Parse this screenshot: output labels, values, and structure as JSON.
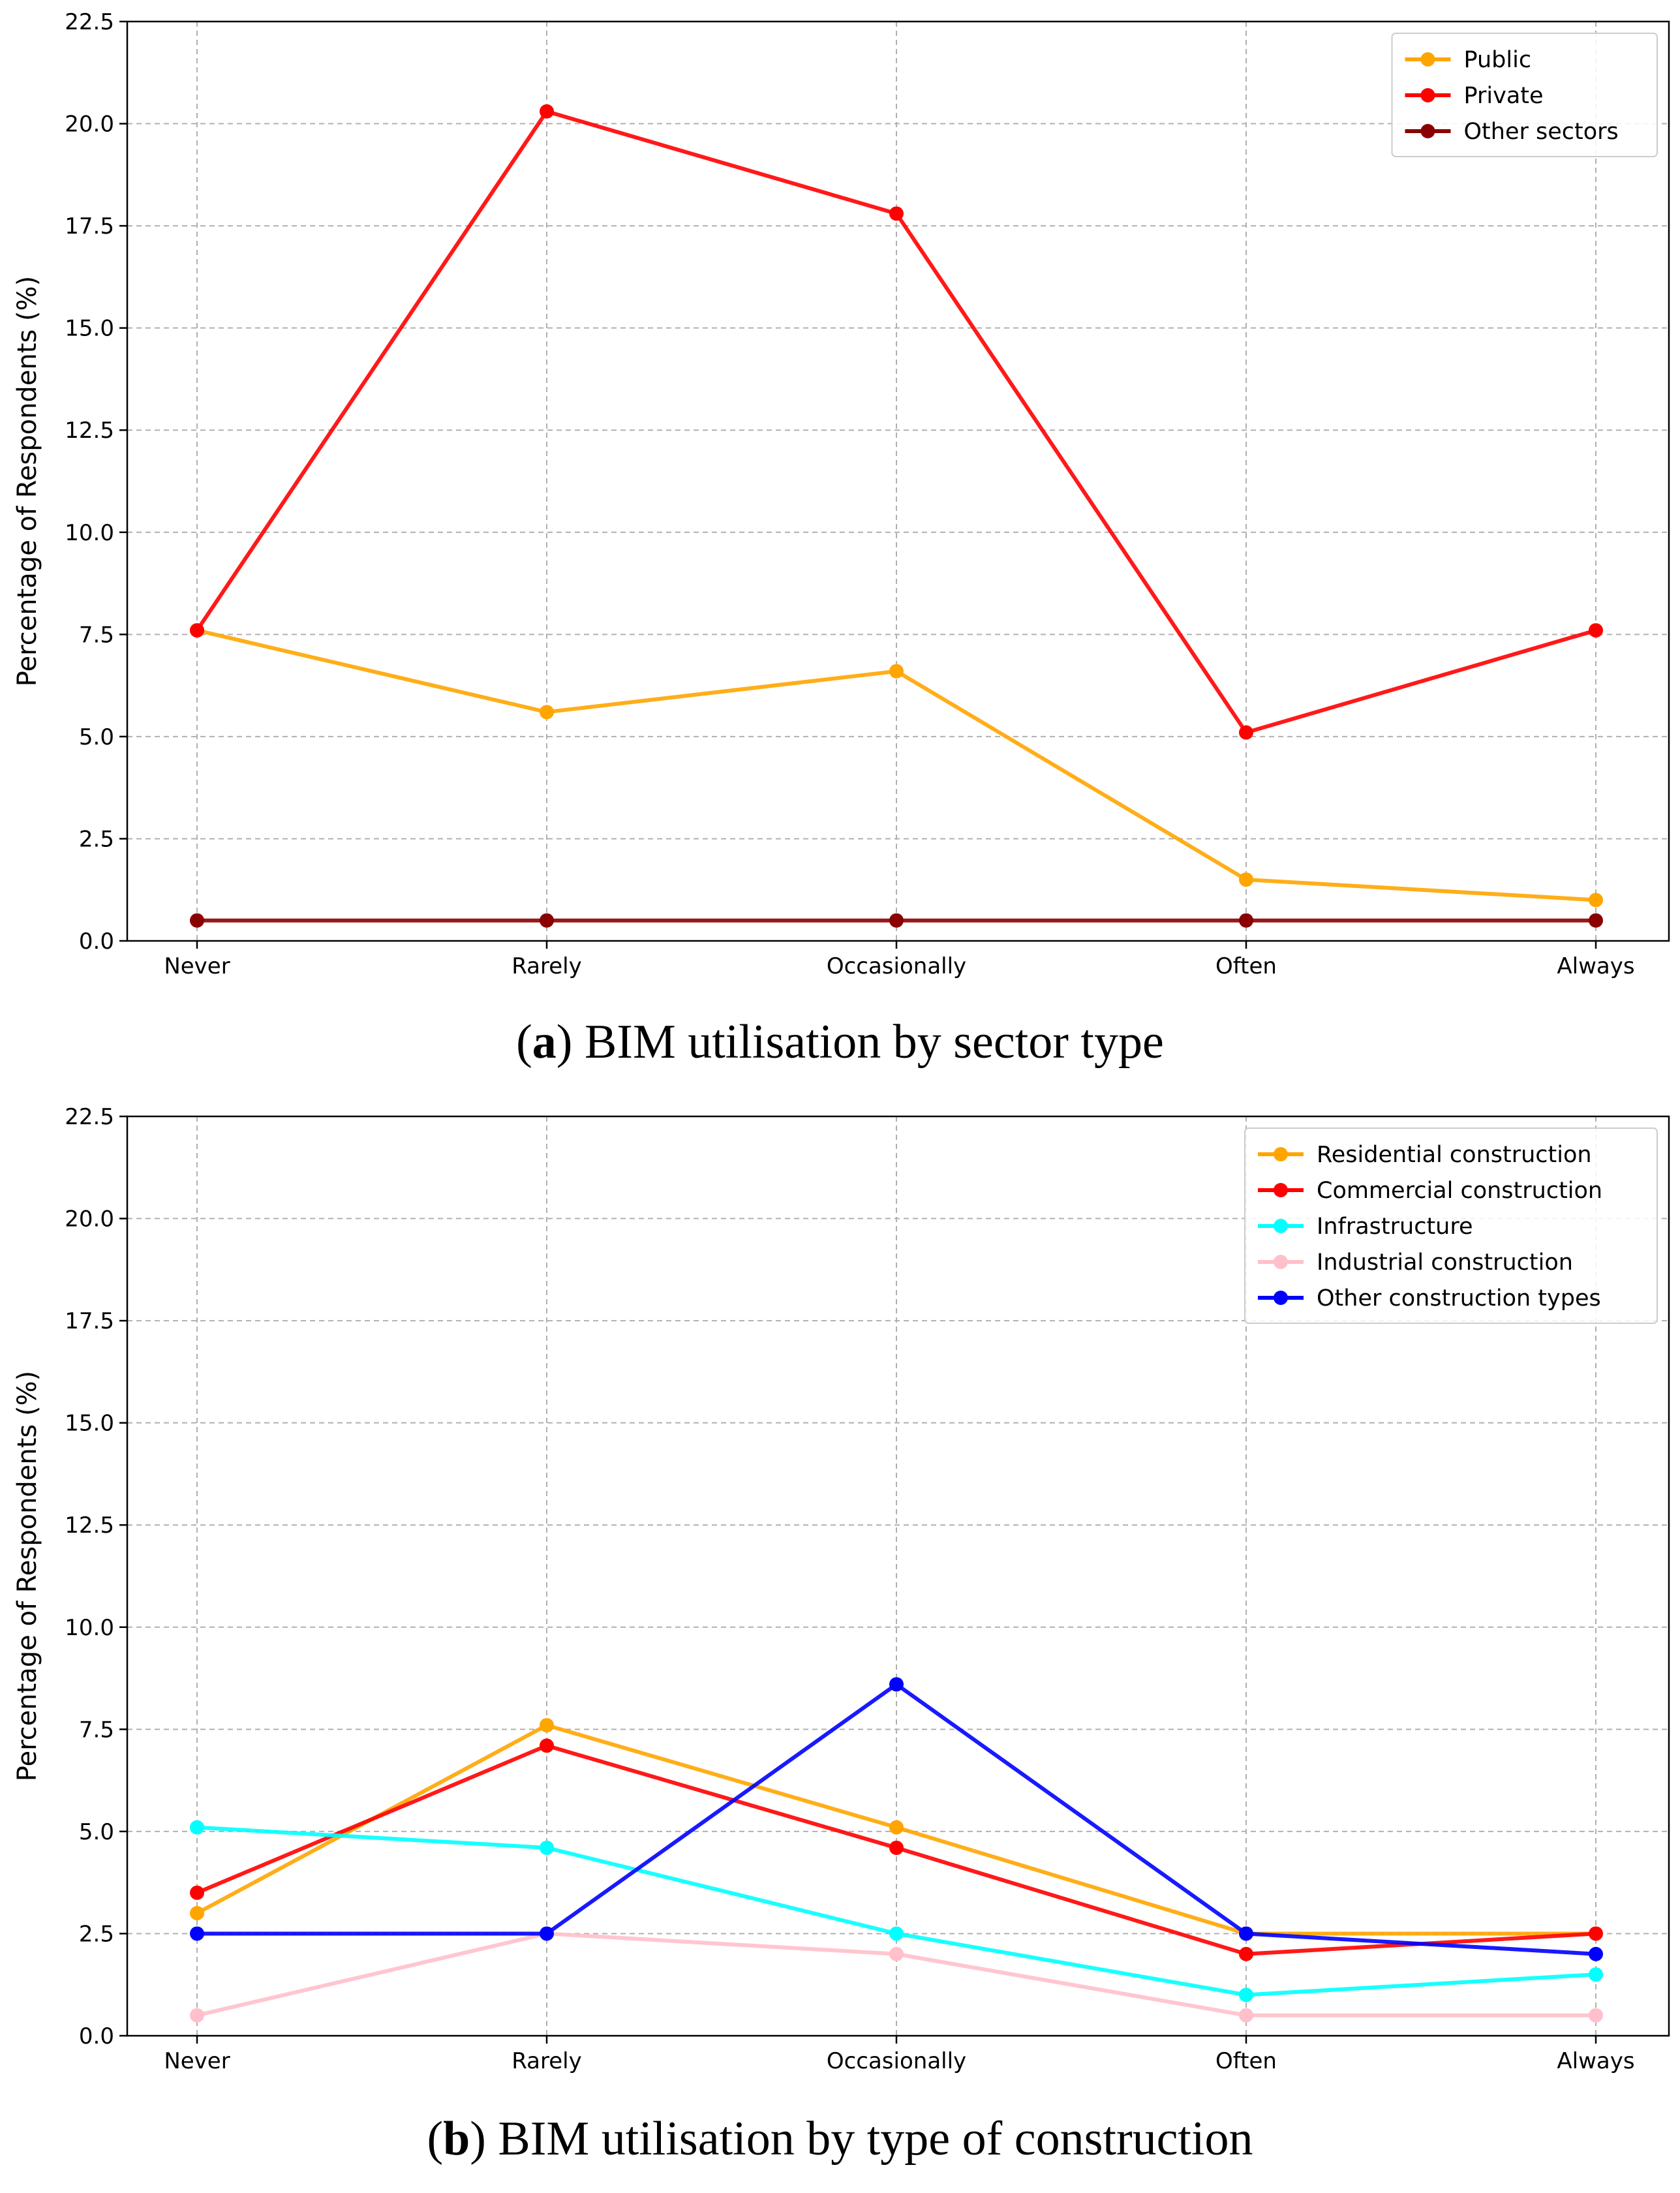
{
  "chart_data": [
    {
      "type": "line",
      "categories": [
        "Never",
        "Rarely",
        "Occasionally",
        "Often",
        "Always"
      ],
      "ylabel": "Percentage of Respondents (%)",
      "xlabel": "",
      "ylim": [
        0,
        22.5
      ],
      "yticks": [
        "0.0",
        "2.5",
        "5.0",
        "7.5",
        "10.0",
        "12.5",
        "15.0",
        "17.5",
        "20.0",
        "22.5"
      ],
      "grid": true,
      "legend_position": "top-right",
      "series": [
        {
          "name": "Public",
          "color": "#ffa500",
          "values": [
            7.6,
            5.6,
            6.6,
            1.5,
            1.0
          ]
        },
        {
          "name": "Private",
          "color": "#ff0000",
          "values": [
            7.6,
            20.3,
            17.8,
            5.1,
            7.6
          ]
        },
        {
          "name": "Other sectors",
          "color": "#8b0000",
          "values": [
            0.5,
            0.5,
            0.5,
            0.5,
            0.5
          ]
        }
      ]
    },
    {
      "type": "line",
      "categories": [
        "Never",
        "Rarely",
        "Occasionally",
        "Often",
        "Always"
      ],
      "ylabel": "Percentage of Respondents (%)",
      "xlabel": "",
      "ylim": [
        0,
        22.5
      ],
      "yticks": [
        "0.0",
        "2.5",
        "5.0",
        "7.5",
        "10.0",
        "12.5",
        "15.0",
        "17.5",
        "20.0",
        "22.5"
      ],
      "grid": true,
      "legend_position": "top-right",
      "series": [
        {
          "name": "Residential construction",
          "color": "#ffa500",
          "values": [
            3.0,
            7.6,
            5.1,
            2.5,
            2.5
          ]
        },
        {
          "name": "Commercial construction",
          "color": "#ff0000",
          "values": [
            3.5,
            7.1,
            4.6,
            2.0,
            2.5
          ]
        },
        {
          "name": "Infrastructure",
          "color": "#00ffff",
          "values": [
            5.1,
            4.6,
            2.5,
            1.0,
            1.5
          ]
        },
        {
          "name": "Industrial construction",
          "color": "#ffc0cb",
          "values": [
            0.5,
            2.5,
            2.0,
            0.5,
            0.5
          ]
        },
        {
          "name": "Other construction types",
          "color": "#0000ff",
          "values": [
            2.5,
            2.5,
            8.6,
            2.5,
            2.0
          ]
        }
      ]
    }
  ],
  "captions": [
    {
      "label": "a",
      "text": ") BIM utilisation by sector type"
    },
    {
      "label": "b",
      "text": ") BIM utilisation by type of construction"
    }
  ]
}
